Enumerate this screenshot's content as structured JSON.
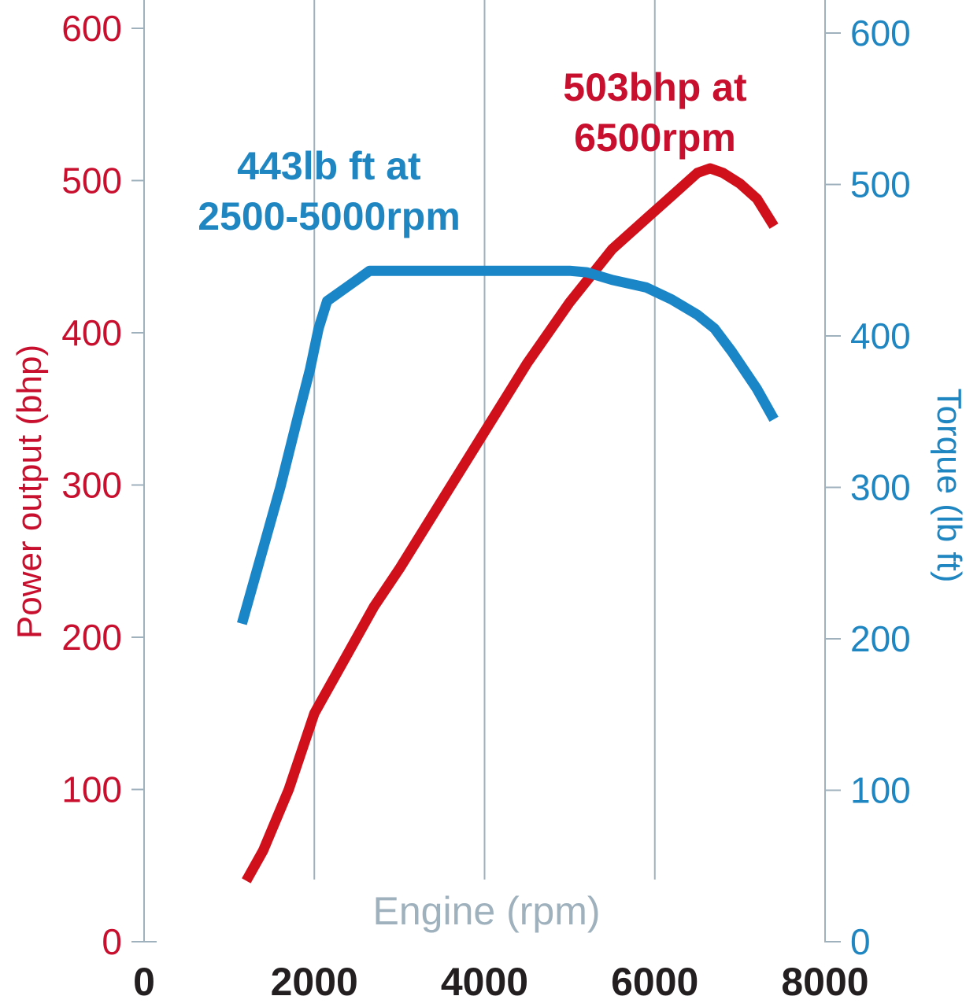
{
  "chart_data": {
    "type": "line",
    "xlabel": "Engine (rpm)",
    "ylabel_left": "Power output (bhp)",
    "ylabel_right": "Torque (lb ft)",
    "xlim": [
      0,
      8000
    ],
    "ylim_left": [
      0,
      600
    ],
    "ylim_right": [
      0,
      600
    ],
    "x_ticks": [
      "0",
      "2000",
      "4000",
      "6000",
      "8000"
    ],
    "y_left_ticks": [
      "0",
      "100",
      "200",
      "300",
      "400",
      "500",
      "600"
    ],
    "y_right_ticks": [
      "0",
      "100",
      "200",
      "300",
      "400",
      "500",
      "600"
    ],
    "grid": "vertical",
    "series": [
      {
        "axis": "left",
        "color": "#d0111b",
        "x": [
          1200,
          1400,
          1700,
          2000,
          2100,
          2400,
          2700,
          3000,
          3500,
          4000,
          4500,
          5000,
          5500,
          5900,
          6200,
          6500,
          6650,
          6800,
          7000,
          7200,
          7400
        ],
        "values": [
          40,
          60,
          100,
          150,
          160,
          190,
          220,
          245,
          290,
          335,
          380,
          420,
          455,
          475,
          490,
          505,
          508,
          505,
          498,
          488,
          470
        ]
      },
      {
        "axis": "right",
        "color": "#1a86c8",
        "x": [
          1150,
          1400,
          1600,
          1800,
          1950,
          2050,
          2150,
          2400,
          2650,
          3000,
          4000,
          5000,
          5200,
          5500,
          5900,
          6200,
          6500,
          6700,
          6900,
          7200,
          7400
        ],
        "values": [
          210,
          260,
          300,
          345,
          378,
          405,
          423,
          433,
          443,
          443,
          443,
          443,
          442,
          437,
          432,
          424,
          414,
          405,
          390,
          365,
          345
        ]
      }
    ],
    "annotations": {
      "torque": [
        "443lb ft at",
        "2500-5000rpm"
      ],
      "power": [
        "503bhp at",
        "6500rpm"
      ]
    }
  }
}
